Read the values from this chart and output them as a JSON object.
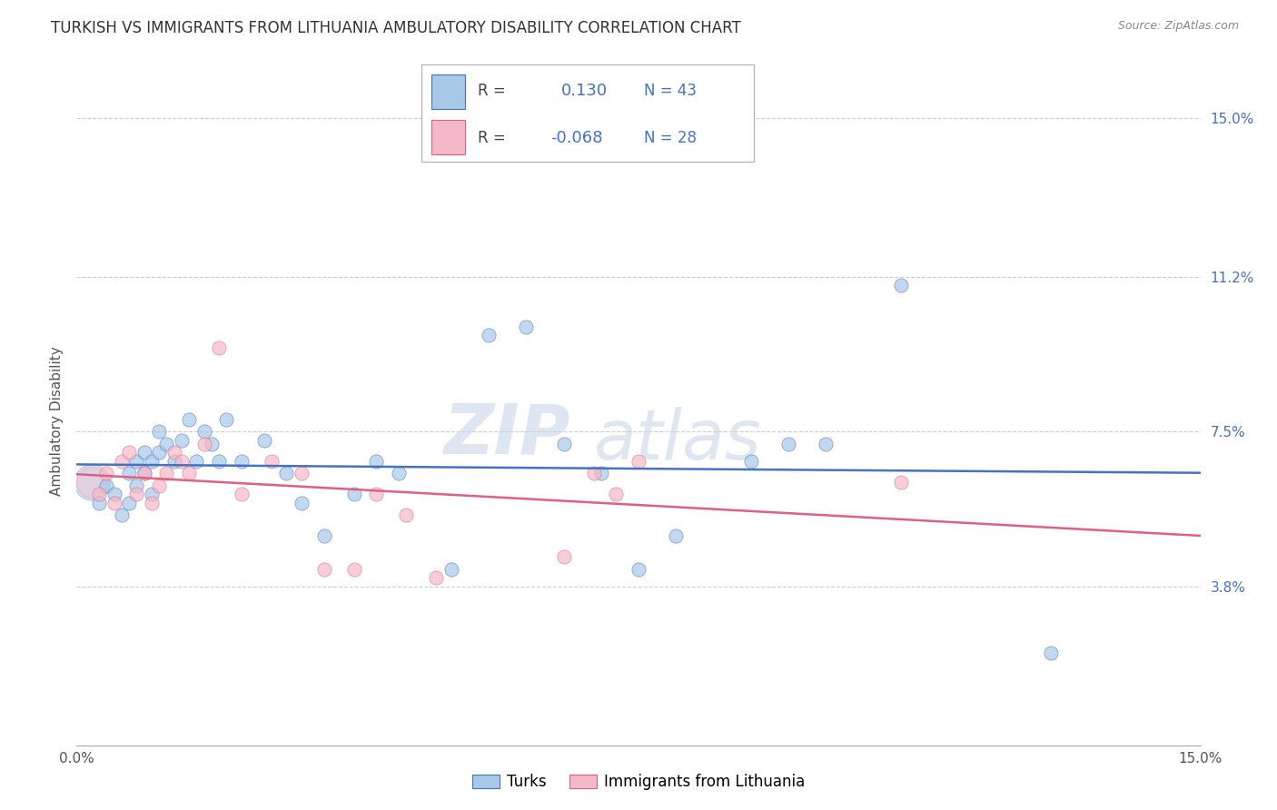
{
  "title": "TURKISH VS IMMIGRANTS FROM LITHUANIA AMBULATORY DISABILITY CORRELATION CHART",
  "source": "Source: ZipAtlas.com",
  "ylabel": "Ambulatory Disability",
  "yticks": [
    "15.0%",
    "11.2%",
    "7.5%",
    "3.8%"
  ],
  "ytick_vals": [
    0.15,
    0.112,
    0.075,
    0.038
  ],
  "xmin": 0.0,
  "xmax": 0.15,
  "ymin": 0.0,
  "ymax": 0.155,
  "R_turks": 0.13,
  "N_turks": 43,
  "R_lithuania": -0.068,
  "N_lithuania": 28,
  "color_turks": "#a8c8e8",
  "color_lithuania": "#f4b8c8",
  "line_color_turks": "#4472c4",
  "line_color_lithuania": "#e06080",
  "legend_label_turks": "Turks",
  "legend_label_lithuania": "Immigrants from Lithuania",
  "turks_x": [
    0.003,
    0.004,
    0.005,
    0.006,
    0.007,
    0.007,
    0.008,
    0.008,
    0.009,
    0.009,
    0.01,
    0.01,
    0.011,
    0.011,
    0.012,
    0.013,
    0.014,
    0.015,
    0.016,
    0.017,
    0.018,
    0.019,
    0.02,
    0.022,
    0.025,
    0.028,
    0.03,
    0.033,
    0.037,
    0.04,
    0.043,
    0.05,
    0.055,
    0.06,
    0.065,
    0.07,
    0.075,
    0.08,
    0.09,
    0.095,
    0.1,
    0.11,
    0.13
  ],
  "turks_y": [
    0.058,
    0.062,
    0.06,
    0.055,
    0.065,
    0.058,
    0.068,
    0.062,
    0.07,
    0.065,
    0.06,
    0.068,
    0.075,
    0.07,
    0.072,
    0.068,
    0.073,
    0.078,
    0.068,
    0.075,
    0.072,
    0.068,
    0.078,
    0.068,
    0.073,
    0.065,
    0.058,
    0.05,
    0.06,
    0.068,
    0.065,
    0.042,
    0.098,
    0.1,
    0.072,
    0.065,
    0.042,
    0.05,
    0.068,
    0.072,
    0.072,
    0.11,
    0.022
  ],
  "lithuania_x": [
    0.003,
    0.004,
    0.005,
    0.006,
    0.007,
    0.008,
    0.009,
    0.01,
    0.011,
    0.012,
    0.013,
    0.014,
    0.015,
    0.017,
    0.019,
    0.022,
    0.026,
    0.03,
    0.033,
    0.037,
    0.04,
    0.044,
    0.048,
    0.065,
    0.069,
    0.072,
    0.075,
    0.11
  ],
  "lithuania_y": [
    0.06,
    0.065,
    0.058,
    0.068,
    0.07,
    0.06,
    0.065,
    0.058,
    0.062,
    0.065,
    0.07,
    0.068,
    0.065,
    0.072,
    0.095,
    0.06,
    0.068,
    0.065,
    0.042,
    0.042,
    0.06,
    0.055,
    0.04,
    0.045,
    0.065,
    0.06,
    0.068,
    0.063
  ]
}
